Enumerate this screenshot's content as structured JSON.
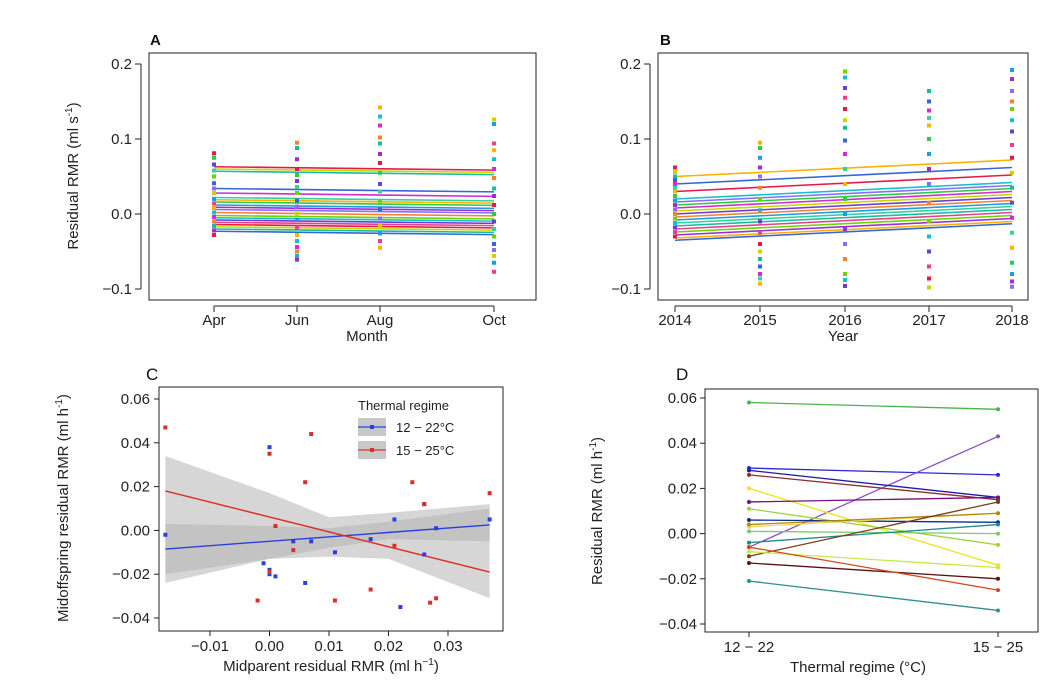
{
  "colors": {
    "blue": "#2b3fe0",
    "red": "#d93025",
    "ci": "#b5b5b5",
    "palette": [
      "#e6194b",
      "#f58231",
      "#ffb000",
      "#c8d600",
      "#6dd400",
      "#2ecc40",
      "#1abc9c",
      "#17becf",
      "#1f9bdf",
      "#3367d6",
      "#6a3fd0",
      "#9b2fd6",
      "#d12bd1",
      "#e8408f",
      "#8b6cff",
      "#35d0a0"
    ]
  },
  "chart_data": [
    {
      "panel": "A",
      "type": "scatter",
      "title": "A",
      "xlabel": "Month",
      "ylabel": "Residual RMR (ml s",
      "ylabel_sup": "-1",
      "ylabel_end": ")",
      "categories": [
        "Apr",
        "Jun",
        "Aug",
        "Oct"
      ],
      "ylim": [
        -0.11,
        0.205
      ],
      "yticks": [
        {
          "v": 0.2,
          "t": "0.2"
        },
        {
          "v": 0.1,
          "t": "0.1"
        },
        {
          "v": 0.0,
          "t": "0.0"
        },
        {
          "v": -0.1,
          "t": "−0.1"
        }
      ],
      "fit_intercepts": [
        0.063,
        0.06,
        0.057,
        0.034,
        0.028,
        0.022,
        0.019,
        0.016,
        0.012,
        0.009,
        0.006,
        0.002,
        -0.002,
        -0.005,
        -0.008,
        -0.011,
        -0.014,
        -0.017,
        -0.02,
        -0.023
      ],
      "fit_slope_per_step": -0.0015,
      "points": [
        [
          0.081,
          0.075,
          0.066,
          0.058,
          0.05,
          0.041,
          0.034,
          0.028,
          0.02,
          0.014,
          0.008,
          0.002,
          -0.004,
          -0.01,
          -0.016,
          -0.022,
          -0.028
        ],
        [
          0.095,
          0.088,
          0.073,
          0.06,
          0.052,
          0.044,
          0.036,
          0.028,
          0.018,
          0.01,
          0.0,
          -0.008,
          -0.018,
          -0.028,
          -0.036,
          -0.044,
          -0.05,
          -0.056,
          -0.061
        ],
        [
          0.142,
          0.13,
          0.118,
          0.102,
          0.094,
          0.08,
          0.068,
          0.055,
          0.04,
          0.03,
          0.016,
          0.006,
          -0.006,
          -0.016,
          -0.026,
          -0.036,
          -0.045
        ],
        [
          0.126,
          0.12,
          0.094,
          0.085,
          0.073,
          0.06,
          0.048,
          0.034,
          0.024,
          0.012,
          0.0,
          -0.01,
          -0.02,
          -0.03,
          -0.04,
          -0.048,
          -0.056,
          -0.065,
          -0.077
        ]
      ]
    },
    {
      "panel": "B",
      "type": "scatter",
      "title": "B",
      "xlabel": "Year",
      "categories": [
        "2014",
        "2015",
        "2016",
        "2017",
        "2018"
      ],
      "ylim": [
        -0.11,
        0.205
      ],
      "yticks": [
        {
          "v": 0.2,
          "t": "0.2"
        },
        {
          "v": 0.1,
          "t": "0.1"
        },
        {
          "v": 0.0,
          "t": "0.0"
        },
        {
          "v": -0.1,
          "t": "−0.1"
        }
      ],
      "fit_start": [
        0.05,
        0.04,
        0.03,
        0.02,
        0.016,
        0.012,
        0.008,
        0.004,
        0.0,
        -0.004,
        -0.008,
        -0.012,
        -0.016,
        -0.02,
        -0.024,
        -0.028,
        -0.032,
        -0.035
      ],
      "fit_rise": 0.022,
      "points": [
        [
          0.062,
          0.056,
          0.05,
          0.045,
          0.04,
          0.035,
          0.03,
          0.024,
          0.018,
          0.012,
          0.006,
          0.0,
          -0.006,
          -0.012,
          -0.018,
          -0.024,
          -0.03
        ],
        [
          0.095,
          0.088,
          0.075,
          0.062,
          0.05,
          0.035,
          0.02,
          0.005,
          -0.01,
          -0.025,
          -0.04,
          -0.05,
          -0.06,
          -0.07,
          -0.08,
          -0.086,
          -0.093
        ],
        [
          0.19,
          0.182,
          0.168,
          0.155,
          0.14,
          0.125,
          0.115,
          0.098,
          0.08,
          0.06,
          0.04,
          0.02,
          0.0,
          -0.02,
          -0.04,
          -0.06,
          -0.08,
          -0.088,
          -0.096
        ],
        [
          0.164,
          0.15,
          0.138,
          0.128,
          0.118,
          0.1,
          0.08,
          0.06,
          0.04,
          0.015,
          -0.01,
          -0.03,
          -0.05,
          -0.07,
          -0.086,
          -0.098
        ],
        [
          0.192,
          0.18,
          0.164,
          0.15,
          0.14,
          0.125,
          0.11,
          0.092,
          0.075,
          0.055,
          0.035,
          0.015,
          -0.005,
          -0.025,
          -0.045,
          -0.065,
          -0.08,
          -0.09,
          -0.097
        ]
      ]
    },
    {
      "panel": "C",
      "type": "scatter",
      "title": "C",
      "xlabel": "Midparent residual RMR (ml h",
      "xlabel_sup": "−1",
      "xlabel_end": ")",
      "ylabel": "Midoffspring residual RMR (ml h",
      "ylabel_sup": "-1",
      "ylabel_end": ")",
      "xlim": [
        -0.019,
        0.038
      ],
      "ylim": [
        -0.042,
        0.062
      ],
      "xticks": [
        {
          "v": -0.01,
          "t": "−0.01"
        },
        {
          "v": 0.0,
          "t": "0.00"
        },
        {
          "v": 0.01,
          "t": "0.01"
        },
        {
          "v": 0.02,
          "t": "0.02"
        },
        {
          "v": 0.03,
          "t": "0.03"
        }
      ],
      "yticks": [
        {
          "v": 0.06,
          "t": "0.06"
        },
        {
          "v": 0.04,
          "t": "0.04"
        },
        {
          "v": 0.02,
          "t": "0.02"
        },
        {
          "v": 0.0,
          "t": "0.00"
        },
        {
          "v": -0.02,
          "t": "−0.02"
        },
        {
          "v": -0.04,
          "t": "−0.04"
        }
      ],
      "legend_title": "Thermal regime",
      "series": [
        {
          "name": "12 − 22°C",
          "color_key": "blue",
          "fit": [
            [
              -0.0175,
              -0.0085
            ],
            [
              0.037,
              0.0025
            ]
          ],
          "ci_band": {
            "x": [
              -0.0175,
              0.0,
              0.01,
              0.02,
              0.037
            ],
            "upper": [
              0.003,
              0.002,
              0.001,
              0.004,
              0.01
            ],
            "lower": [
              -0.02,
              -0.013,
              -0.008,
              -0.004,
              -0.005
            ]
          },
          "points": [
            [
              -0.0175,
              -0.002
            ],
            [
              0.0,
              0.038
            ],
            [
              -0.001,
              -0.015
            ],
            [
              0.0,
              -0.018
            ],
            [
              0.0,
              -0.02
            ],
            [
              0.001,
              -0.021
            ],
            [
              0.004,
              -0.005
            ],
            [
              0.006,
              -0.024
            ],
            [
              0.007,
              -0.005
            ],
            [
              0.011,
              -0.01
            ],
            [
              0.017,
              -0.004
            ],
            [
              0.021,
              0.005
            ],
            [
              0.022,
              -0.035
            ],
            [
              0.026,
              0.012
            ],
            [
              0.026,
              -0.011
            ],
            [
              0.028,
              0.001
            ],
            [
              0.037,
              0.005
            ]
          ]
        },
        {
          "name": "15 − 25°C",
          "color_key": "red",
          "fit": [
            [
              -0.0175,
              0.018
            ],
            [
              0.037,
              -0.019
            ]
          ],
          "ci_band": {
            "x": [
              -0.0175,
              0.0,
              0.01,
              0.02,
              0.037
            ],
            "upper": [
              0.034,
              0.017,
              0.006,
              0.008,
              0.012
            ],
            "lower": [
              -0.024,
              -0.013,
              -0.012,
              -0.013,
              -0.031
            ]
          },
          "points": [
            [
              -0.0175,
              0.047
            ],
            [
              0.0,
              0.035
            ],
            [
              -0.002,
              -0.032
            ],
            [
              0.0,
              -0.019
            ],
            [
              0.001,
              0.002
            ],
            [
              0.004,
              -0.009
            ],
            [
              0.006,
              0.022
            ],
            [
              0.007,
              0.044
            ],
            [
              0.011,
              -0.032
            ],
            [
              0.017,
              -0.027
            ],
            [
              0.021,
              -0.007
            ],
            [
              0.024,
              0.022
            ],
            [
              0.026,
              0.012
            ],
            [
              0.027,
              -0.033
            ],
            [
              0.028,
              -0.031
            ],
            [
              0.037,
              0.017
            ]
          ]
        }
      ]
    },
    {
      "panel": "D",
      "type": "line",
      "title": "D",
      "xlabel": "Thermal regime (°C)",
      "ylabel": "Residual RMR (ml h",
      "ylabel_sup": "-1",
      "ylabel_end": ")",
      "categories": [
        "12 − 22",
        "15 − 25"
      ],
      "ylim": [
        -0.043,
        0.062
      ],
      "yticks": [
        {
          "v": 0.06,
          "t": "0.06"
        },
        {
          "v": 0.04,
          "t": "0.04"
        },
        {
          "v": 0.02,
          "t": "0.02"
        },
        {
          "v": 0.0,
          "t": "0.00"
        },
        {
          "v": -0.02,
          "t": "−0.02"
        },
        {
          "v": -0.04,
          "t": "−0.04"
        }
      ],
      "series": [
        {
          "color": "#4bb34b",
          "values": [
            0.058,
            0.055
          ]
        },
        {
          "color": "#2b2bd6",
          "values": [
            0.029,
            0.026
          ]
        },
        {
          "color": "#8a52c9",
          "values": [
            -0.006,
            0.043
          ]
        },
        {
          "color": "#8b2f2f",
          "values": [
            0.026,
            0.015
          ]
        },
        {
          "color": "#1c1ca8",
          "values": [
            0.028,
            0.016
          ]
        },
        {
          "color": "#f0e21a",
          "values": [
            0.02,
            -0.014
          ]
        },
        {
          "color": "#7a0f7a",
          "values": [
            0.014,
            0.016
          ]
        },
        {
          "color": "#9fcf3a",
          "values": [
            0.011,
            -0.005
          ]
        },
        {
          "color": "#0e2f8c",
          "values": [
            0.006,
            0.005
          ]
        },
        {
          "color": "#e8d95a",
          "values": [
            0.003,
            0.009
          ]
        },
        {
          "color": "#b8860b",
          "values": [
            0.004,
            0.009
          ]
        },
        {
          "color": "#7cc96e",
          "values": [
            0.001,
            0.0
          ]
        },
        {
          "color": "#1b8a8a",
          "values": [
            -0.004,
            0.004
          ]
        },
        {
          "color": "#7a3b1b",
          "values": [
            -0.01,
            0.014
          ]
        },
        {
          "color": "#c7ea46",
          "values": [
            -0.008,
            -0.015
          ]
        },
        {
          "color": "#5c1010",
          "values": [
            -0.013,
            -0.02
          ]
        },
        {
          "color": "#d14a1c",
          "values": [
            -0.006,
            -0.025
          ]
        },
        {
          "color": "#2f8f8f",
          "values": [
            -0.021,
            -0.034
          ]
        }
      ]
    }
  ]
}
